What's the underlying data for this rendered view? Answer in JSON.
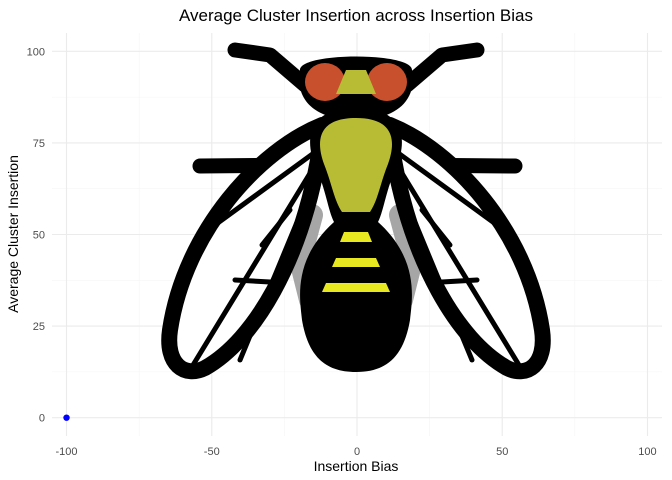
{
  "chart_data": {
    "type": "scatter",
    "title": "Average Cluster Insertion across Insertion Bias",
    "xlabel": "Insertion Bias",
    "ylabel": "Average Cluster Insertion",
    "xlim": [
      -105,
      105
    ],
    "ylim": [
      -5,
      105
    ],
    "xticks": [
      -100,
      -50,
      0,
      50,
      100
    ],
    "yticks": [
      0,
      25,
      50,
      75,
      100
    ],
    "grid": true,
    "points": [
      {
        "x": -100,
        "y": 0
      }
    ],
    "point_color": "#0000ff",
    "background_image": "fly-illustration",
    "colors": {
      "fly_outline": "#000000",
      "fly_body": "#b8bc35",
      "fly_eyes": "#c8502c",
      "fly_stripes": "#e8e820",
      "fly_shadow": "#a6a6a6"
    }
  }
}
